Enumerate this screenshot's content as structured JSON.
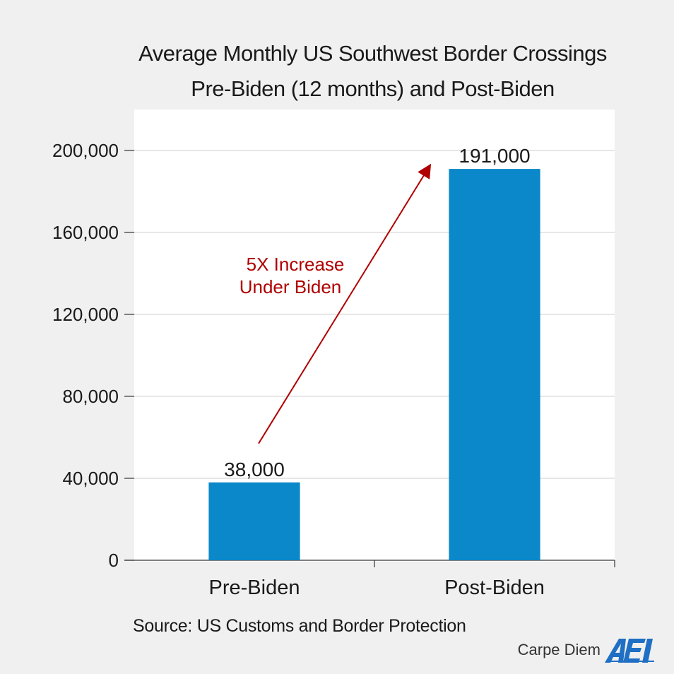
{
  "chart_data": {
    "type": "bar",
    "title": "Average Monthly US Southwest Border Crossings",
    "subtitle": "Pre-Biden (12 months) and Post-Biden",
    "categories": [
      "Pre-Biden",
      "Post-Biden"
    ],
    "values": [
      38000,
      191000
    ],
    "value_labels": [
      "38,000",
      "191,000"
    ],
    "ylim": [
      0,
      220000
    ],
    "yticks": [
      0,
      40000,
      80000,
      120000,
      160000,
      200000
    ],
    "ytick_labels": [
      "0",
      "40,000",
      "80,000",
      "120,000",
      "160,000",
      "200,000"
    ],
    "grid": true,
    "legend": "none",
    "bar_color": "#0a88c9",
    "annotation": {
      "lines": [
        "5X Increase",
        "Under Biden"
      ],
      "color": "#b00000",
      "arrow": "from Pre-Biden bar to Post-Biden bar"
    }
  },
  "footer": {
    "source": "Source: US Customs and Border Protection",
    "branding": "Carpe Diem",
    "logo_text": "AEI"
  }
}
